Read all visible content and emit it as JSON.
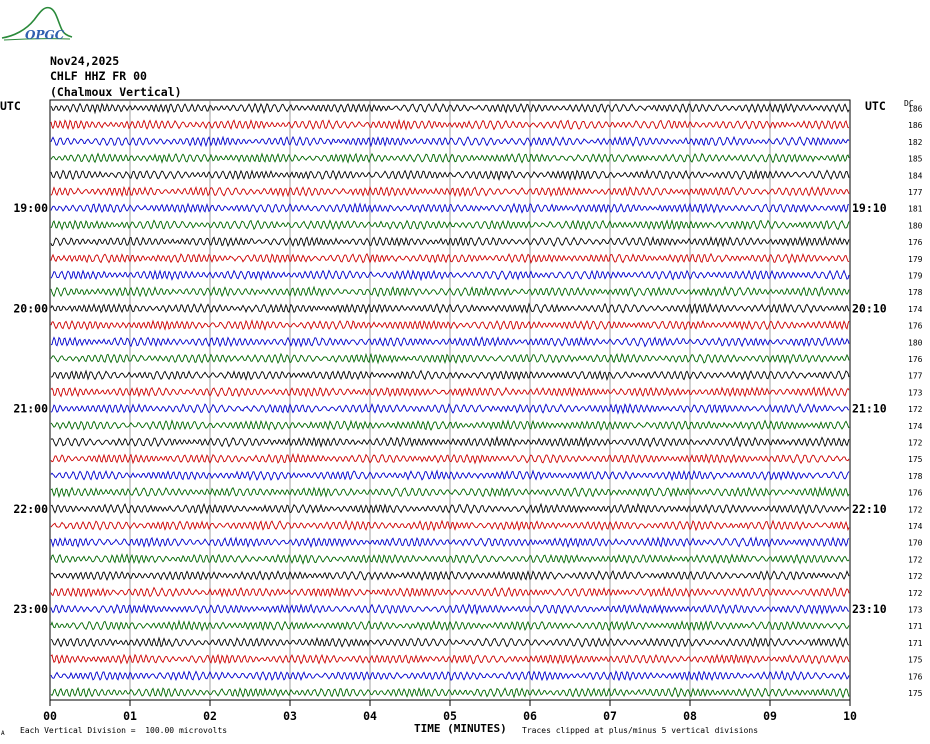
{
  "logo": {
    "text": "OPGC"
  },
  "header": {
    "date": "Nov24,2025",
    "station": "CHLF HHZ FR 00",
    "component": "(Chalmoux Vertical)"
  },
  "labels": {
    "left_utc": "UTC",
    "right_utc": "UTC",
    "dc": "DC"
  },
  "footer": {
    "scale_marker": "A",
    "scale_text": "Each Vertical Division =  100.00 microvolts",
    "clip_text": "Traces clipped at plus/minus 5 vertical divisions"
  },
  "colors": {
    "traces": [
      "#000000",
      "#cc0000",
      "#0000cc",
      "#006600"
    ],
    "grid": "#888888",
    "logo": "#2a8a3a"
  },
  "chart_data": {
    "type": "line",
    "title": "",
    "xlabel": "TIME (MINUTES)",
    "ylabel": "",
    "xlim": [
      0,
      10
    ],
    "x_tick_labels": [
      "00",
      "01",
      "02",
      "03",
      "04",
      "05",
      "06",
      "07",
      "08",
      "09",
      "10"
    ],
    "left_time_labels": [
      {
        "row": 6,
        "text": "19:00"
      },
      {
        "row": 12,
        "text": "20:00"
      },
      {
        "row": 18,
        "text": "21:00"
      },
      {
        "row": 24,
        "text": "22:00"
      },
      {
        "row": 30,
        "text": "23:00"
      }
    ],
    "right_time_labels": [
      {
        "row": 6,
        "text": "19:10"
      },
      {
        "row": 12,
        "text": "20:10"
      },
      {
        "row": 18,
        "text": "21:10"
      },
      {
        "row": 24,
        "text": "22:10"
      },
      {
        "row": 30,
        "text": "23:10"
      }
    ],
    "trace_minutes": 10,
    "trace_count": 36,
    "dc_offsets": [
      186,
      186,
      182,
      185,
      184,
      177,
      181,
      180,
      176,
      179,
      179,
      178,
      174,
      176,
      180,
      176,
      177,
      173,
      172,
      174,
      172,
      175,
      178,
      176,
      172,
      174,
      170,
      172,
      172,
      172,
      173,
      171,
      171,
      175,
      176,
      175
    ],
    "grid": true
  }
}
